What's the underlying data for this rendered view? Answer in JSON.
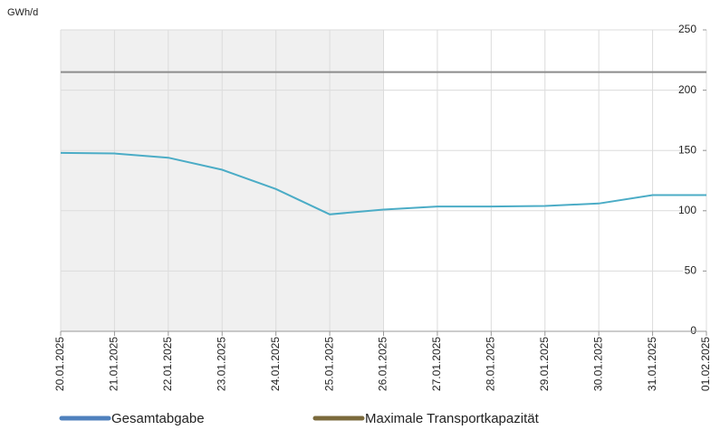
{
  "chart_data": {
    "type": "line",
    "y_label": "GWh/d",
    "categories": [
      "20.01.2025",
      "21.01.2025",
      "22.01.2025",
      "23.01.2025",
      "24.01.2025",
      "25.01.2025",
      "26.01.2025",
      "27.01.2025",
      "28.01.2025",
      "29.01.2025",
      "30.01.2025",
      "31.01.2025",
      "01.02.2025"
    ],
    "series": [
      {
        "name": "Gesamtabgabe",
        "color": "#4bacc6",
        "legend_color": "#4f81bd",
        "values": [
          148,
          147.5,
          144,
          134,
          118,
          97,
          101,
          103.5,
          103.5,
          104,
          106,
          113,
          113
        ]
      },
      {
        "name": "Maximale Transportkapazität",
        "color": "#8c8c8c",
        "legend_color": "#7b6a3c",
        "values": [
          215,
          215,
          215,
          215,
          215,
          215,
          215,
          215,
          215,
          215,
          215,
          215,
          215
        ]
      }
    ],
    "ylim": [
      0,
      250
    ],
    "yticks": [
      0,
      50,
      100,
      150,
      200,
      250
    ],
    "grid": true,
    "shaded": {
      "from": "20.01.2025",
      "to": "26.01.2025",
      "color": "#f0f0f0"
    }
  }
}
